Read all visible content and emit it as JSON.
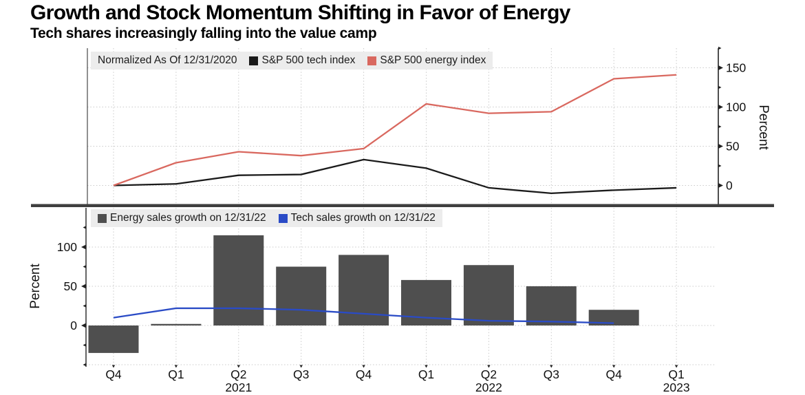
{
  "header": {
    "title": "Growth and Stock Momentum Shifting in Favor of Energy",
    "subtitle": "Tech shares increasingly falling into the value camp"
  },
  "x_axis": {
    "tick_labels": [
      "Q4",
      "Q1",
      "Q2",
      "Q3",
      "Q4",
      "Q1",
      "Q2",
      "Q3",
      "Q4",
      "Q1"
    ],
    "year_labels": [
      {
        "text": "2021",
        "index": 2
      },
      {
        "text": "2022",
        "index": 6
      },
      {
        "text": "2023",
        "index": 9
      }
    ]
  },
  "chart_data": [
    {
      "type": "line",
      "panel": "top",
      "legend_note": "Normalized As Of 12/31/2020",
      "categories": [
        "Q4 2020",
        "Q1 2021",
        "Q2 2021",
        "Q3 2021",
        "Q4 2021",
        "Q1 2022",
        "Q2 2022",
        "Q3 2022",
        "Q4 2022",
        "Q1 2023"
      ],
      "series": [
        {
          "name": "S&P 500 tech index",
          "color": "#1a1a1a",
          "values": [
            0,
            2,
            13,
            14,
            33,
            22,
            -3,
            -10,
            -6,
            -3
          ]
        },
        {
          "name": "S&P 500 energy index",
          "color": "#d9685f",
          "values": [
            0,
            29,
            43,
            38,
            47,
            104,
            92,
            94,
            136,
            141
          ]
        }
      ],
      "ylabel": "Percent",
      "ylabel_side": "right",
      "ylim": [
        -25,
        175
      ],
      "yticks": [
        0,
        50,
        100,
        150
      ],
      "minor_yticks": [
        25,
        75,
        125,
        175
      ],
      "grid_yticks": [
        0,
        50,
        100,
        150
      ],
      "grid": "dotted"
    },
    {
      "type": "bar+line",
      "panel": "bottom",
      "categories": [
        "Q4 2020",
        "Q1 2021",
        "Q2 2021",
        "Q3 2021",
        "Q4 2021",
        "Q1 2022",
        "Q2 2022",
        "Q3 2022",
        "Q4 2022",
        "Q1 2023"
      ],
      "bar_series": {
        "name": "Energy sales growth on 12/31/22",
        "color": "#4f4f4f",
        "values": [
          -35,
          2,
          115,
          75,
          90,
          58,
          77,
          50,
          20,
          null
        ]
      },
      "line_series": {
        "name": "Tech sales growth on 12/31/22",
        "color": "#2a4bc6",
        "values": [
          10,
          22,
          22,
          20,
          15,
          10,
          6,
          5,
          3,
          null
        ]
      },
      "ylabel": "Percent",
      "ylabel_side": "left",
      "ylim": [
        -50,
        150
      ],
      "yticks": [
        0,
        50,
        100
      ],
      "minor_yticks": [
        -50,
        -25,
        25,
        75,
        125
      ],
      "grid_yticks": [
        -50,
        0,
        50,
        100
      ],
      "grid": "dotted"
    }
  ],
  "style": {
    "grid_color": "#c9c9c9",
    "axis_color": "#222222",
    "separator_color": "#3e3e3e",
    "legend_bg": "#ececec"
  }
}
